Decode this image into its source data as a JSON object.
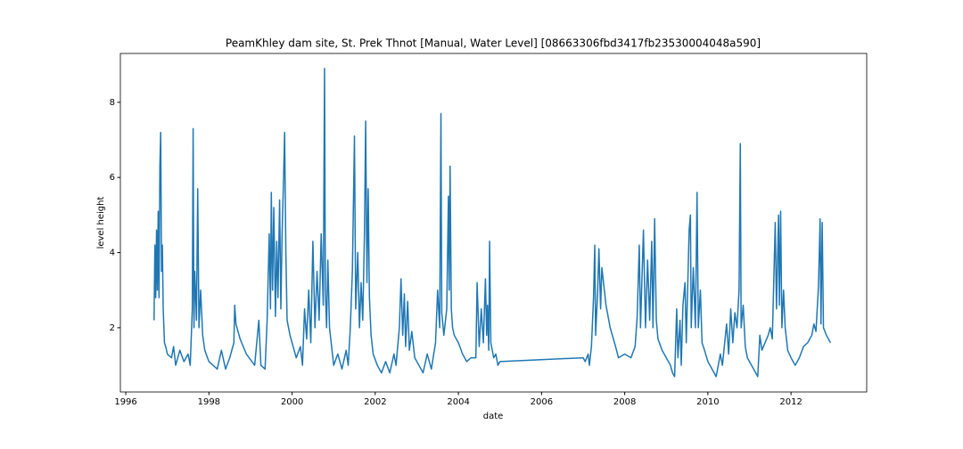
{
  "chart_data": {
    "type": "line",
    "title": "PeamKhley dam site, St. Prek Thnot [Manual, Water Level] [08663306fbd3417fb23530004048a590]",
    "xlabel": "date",
    "ylabel": "level height",
    "color": "#1f77b4",
    "xlim": [
      1995.87,
      2013.82
    ],
    "ylim": [
      0.29,
      9.3
    ],
    "xticks": [
      1996,
      1998,
      2000,
      2002,
      2004,
      2006,
      2008,
      2010,
      2012
    ],
    "yticks": [
      2,
      4,
      6,
      8
    ],
    "x": [
      1996.68,
      1996.7,
      1996.72,
      1996.74,
      1996.76,
      1996.78,
      1996.8,
      1996.82,
      1996.84,
      1996.86,
      1996.88,
      1996.9,
      1996.93,
      1996.96,
      1997.0,
      1997.1,
      1997.15,
      1997.2,
      1997.3,
      1997.4,
      1997.5,
      1997.55,
      1997.6,
      1997.62,
      1997.64,
      1997.66,
      1997.7,
      1997.73,
      1997.76,
      1997.8,
      1997.85,
      1997.9,
      1998.0,
      1998.2,
      1998.3,
      1998.4,
      1998.5,
      1998.6,
      1998.62,
      1998.65,
      1998.75,
      1998.9,
      1999.1,
      1999.2,
      1999.25,
      1999.35,
      1999.4,
      1999.45,
      1999.48,
      1999.5,
      1999.53,
      1999.56,
      1999.6,
      1999.63,
      1999.66,
      1999.7,
      1999.73,
      1999.76,
      1999.8,
      1999.82,
      1999.85,
      1999.88,
      1999.95,
      2000.05,
      2000.1,
      2000.2,
      2000.25,
      2000.3,
      2000.35,
      2000.4,
      2000.45,
      2000.5,
      2000.55,
      2000.6,
      2000.65,
      2000.7,
      2000.75,
      2000.78,
      2000.8,
      2000.83,
      2000.86,
      2000.9,
      2000.95,
      2001.0,
      2001.1,
      2001.2,
      2001.3,
      2001.35,
      2001.4,
      2001.45,
      2001.5,
      2001.53,
      2001.58,
      2001.62,
      2001.66,
      2001.7,
      2001.74,
      2001.77,
      2001.8,
      2001.83,
      2001.86,
      2001.9,
      2001.95,
      2002.05,
      2002.15,
      2002.25,
      2002.35,
      2002.45,
      2002.5,
      2002.58,
      2002.62,
      2002.66,
      2002.7,
      2002.73,
      2002.78,
      2002.82,
      2002.88,
      2002.95,
      2003.05,
      2003.15,
      2003.25,
      2003.35,
      2003.45,
      2003.5,
      2003.55,
      2003.58,
      2003.6,
      2003.65,
      2003.72,
      2003.76,
      2003.78,
      2003.8,
      2003.83,
      2003.86,
      2003.9,
      2004.0,
      2004.1,
      2004.2,
      2004.3,
      2004.42,
      2004.45,
      2004.5,
      2004.55,
      2004.6,
      2004.65,
      2004.68,
      2004.7,
      2004.73,
      2004.75,
      2004.78,
      2004.85,
      2004.9,
      2004.95,
      2005.0,
      2007.0,
      2007.05,
      2007.12,
      2007.15,
      2007.2,
      2007.25,
      2007.28,
      2007.3,
      2007.35,
      2007.38,
      2007.42,
      2007.45,
      2007.55,
      2007.65,
      2007.78,
      2007.85,
      2008.0,
      2008.15,
      2008.25,
      2008.3,
      2008.35,
      2008.38,
      2008.45,
      2008.5,
      2008.55,
      2008.6,
      2008.65,
      2008.68,
      2008.72,
      2008.76,
      2008.8,
      2008.9,
      2009.0,
      2009.1,
      2009.15,
      2009.2,
      2009.25,
      2009.28,
      2009.33,
      2009.36,
      2009.4,
      2009.45,
      2009.48,
      2009.55,
      2009.58,
      2009.6,
      2009.65,
      2009.7,
      2009.74,
      2009.77,
      2009.82,
      2009.86,
      2009.92,
      2010.0,
      2010.1,
      2010.2,
      2010.3,
      2010.35,
      2010.45,
      2010.5,
      2010.55,
      2010.6,
      2010.65,
      2010.7,
      2010.75,
      2010.78,
      2010.8,
      2010.85,
      2010.9,
      2010.95,
      2011.05,
      2011.15,
      2011.2,
      2011.25,
      2011.3,
      2011.45,
      2011.5,
      2011.55,
      2011.62,
      2011.65,
      2011.7,
      2011.72,
      2011.75,
      2011.78,
      2011.82,
      2011.86,
      2011.92,
      2012.0,
      2012.1,
      2012.2,
      2012.3,
      2012.4,
      2012.5,
      2012.55,
      2012.6,
      2012.66,
      2012.7,
      2012.72,
      2012.75,
      2012.78,
      2012.85,
      2012.95
    ],
    "values": [
      2.2,
      4.2,
      2.8,
      4.6,
      3.0,
      5.1,
      2.8,
      6.3,
      7.2,
      3.5,
      4.2,
      2.5,
      1.6,
      1.5,
      1.3,
      1.2,
      1.5,
      1.0,
      1.4,
      1.1,
      1.3,
      1.0,
      2.5,
      7.3,
      2.0,
      3.5,
      2.2,
      5.7,
      2.0,
      3.0,
      1.8,
      1.4,
      1.1,
      0.9,
      1.4,
      0.9,
      1.2,
      1.6,
      2.6,
      2.1,
      1.7,
      1.3,
      1.0,
      2.2,
      1.0,
      0.9,
      2.2,
      4.5,
      2.5,
      5.6,
      3.0,
      5.2,
      2.3,
      4.3,
      2.8,
      5.4,
      2.5,
      4.5,
      6.2,
      7.2,
      4.0,
      2.2,
      1.8,
      1.4,
      1.2,
      1.5,
      1.0,
      2.5,
      1.7,
      3.0,
      1.6,
      4.3,
      2.0,
      3.5,
      2.2,
      4.5,
      2.6,
      8.9,
      3.0,
      2.0,
      3.8,
      2.0,
      1.5,
      1.0,
      1.3,
      0.9,
      1.4,
      1.0,
      2.0,
      3.5,
      7.1,
      2.5,
      4.0,
      2.0,
      3.2,
      2.2,
      4.5,
      7.5,
      3.2,
      5.7,
      2.8,
      1.8,
      1.3,
      1.0,
      0.8,
      1.1,
      0.8,
      1.3,
      1.0,
      2.0,
      3.3,
      1.8,
      2.9,
      1.5,
      2.7,
      1.4,
      1.9,
      1.2,
      1.0,
      0.8,
      1.3,
      0.9,
      1.6,
      3.0,
      2.0,
      7.7,
      2.4,
      1.8,
      2.5,
      5.5,
      3.0,
      6.3,
      2.5,
      2.0,
      1.8,
      1.6,
      1.3,
      1.1,
      1.2,
      1.2,
      3.2,
      1.5,
      2.5,
      1.6,
      3.3,
      1.8,
      2.6,
      1.4,
      4.3,
      1.6,
      1.2,
      1.3,
      1.0,
      1.1,
      1.2,
      1.1,
      1.3,
      1.0,
      1.5,
      2.8,
      4.2,
      1.8,
      3.0,
      4.1,
      2.5,
      3.6,
      2.6,
      2.0,
      1.5,
      1.2,
      1.3,
      1.2,
      1.5,
      2.3,
      4.2,
      2.0,
      4.6,
      2.0,
      3.8,
      2.2,
      4.3,
      2.0,
      4.9,
      2.2,
      1.7,
      1.4,
      1.2,
      1.0,
      0.8,
      0.7,
      2.5,
      1.2,
      2.2,
      1.0,
      2.6,
      3.2,
      1.6,
      4.6,
      5.0,
      2.0,
      3.6,
      2.0,
      5.6,
      2.0,
      3.0,
      1.6,
      1.4,
      1.1,
      0.9,
      0.7,
      1.3,
      1.0,
      2.1,
      1.3,
      2.5,
      1.6,
      2.4,
      2.0,
      3.0,
      6.9,
      2.0,
      2.6,
      1.5,
      1.2,
      1.0,
      0.8,
      0.7,
      1.8,
      1.4,
      1.8,
      2.0,
      1.7,
      4.8,
      2.5,
      5.0,
      2.6,
      5.1,
      2.0,
      3.0,
      2.0,
      1.4,
      1.2,
      1.0,
      1.2,
      1.5,
      1.6,
      1.8,
      2.1,
      1.9,
      3.1,
      4.9,
      2.1,
      4.8,
      2.0,
      1.8,
      1.6
    ]
  }
}
